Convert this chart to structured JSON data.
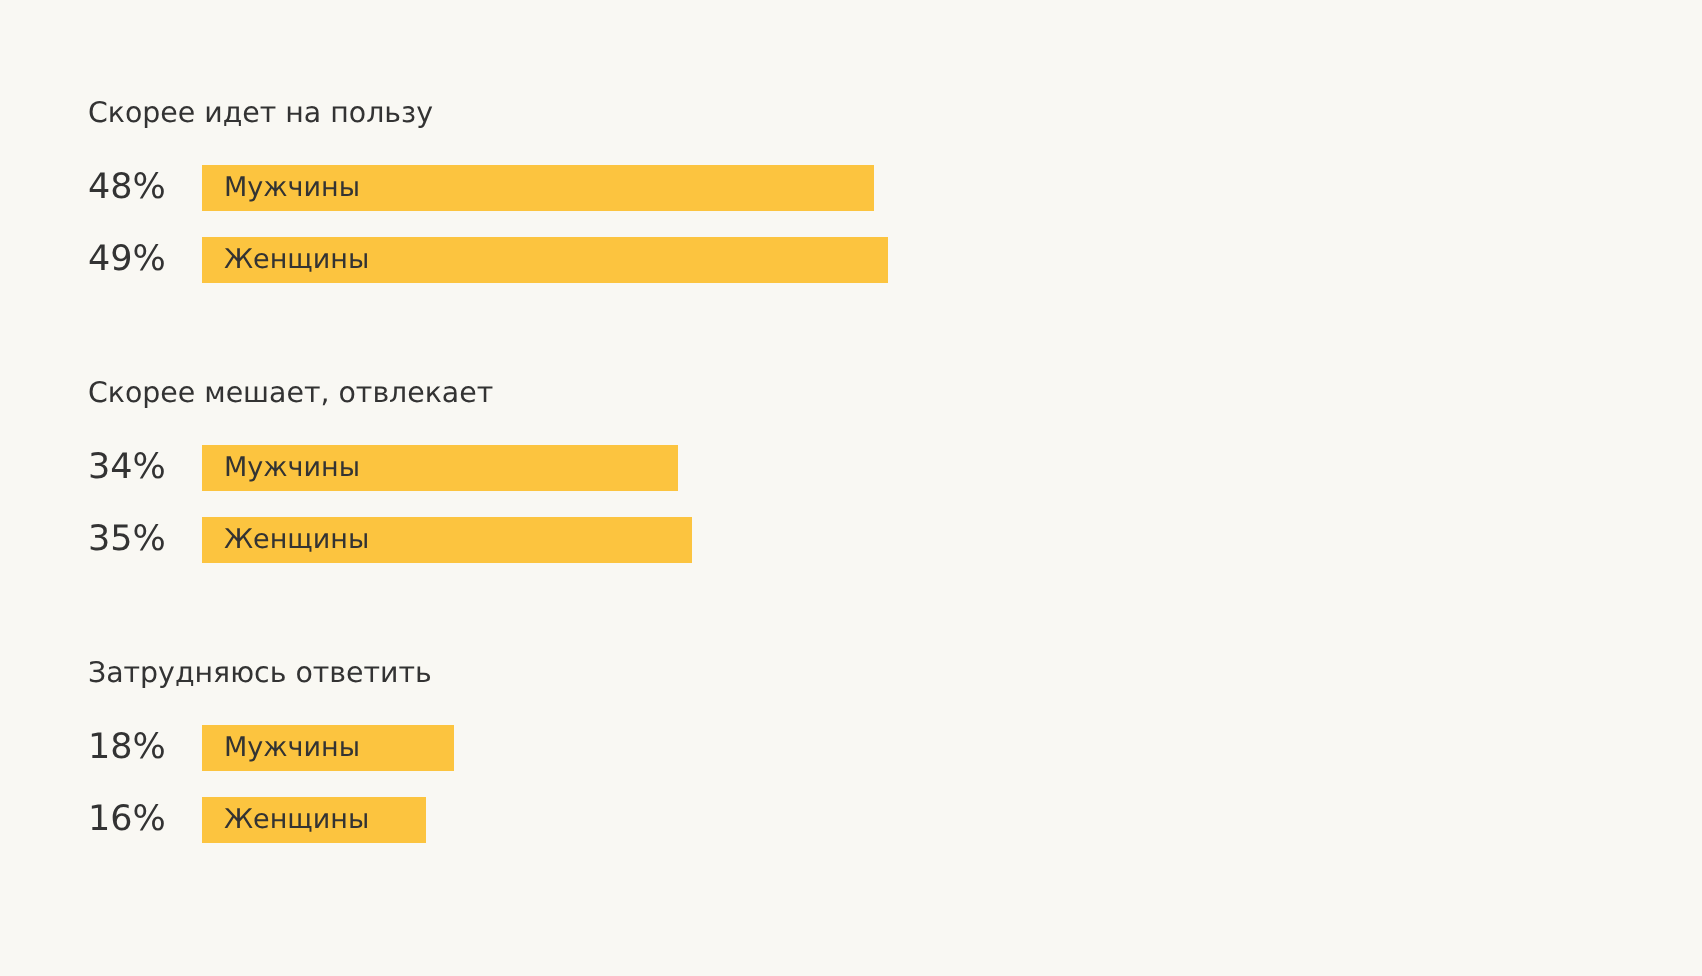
{
  "chart_data": {
    "type": "bar",
    "orientation": "horizontal",
    "tick_labels": "y",
    "categories": [
      "Скорее идет на пользу",
      "Скорее мешает, отвлекает",
      "Затрудняюсь ответить"
    ],
    "series": [
      {
        "name": "Мужчины",
        "color": "#fcc43f",
        "values": [
          48,
          34,
          18
        ],
        "value_labels": [
          "48%",
          "34%",
          "18%"
        ]
      },
      {
        "name": "Женщины",
        "color": "#fcc43f",
        "values": [
          49,
          35,
          16
        ],
        "value_labels": [
          "49%",
          "35%",
          "16%"
        ]
      }
    ]
  }
}
